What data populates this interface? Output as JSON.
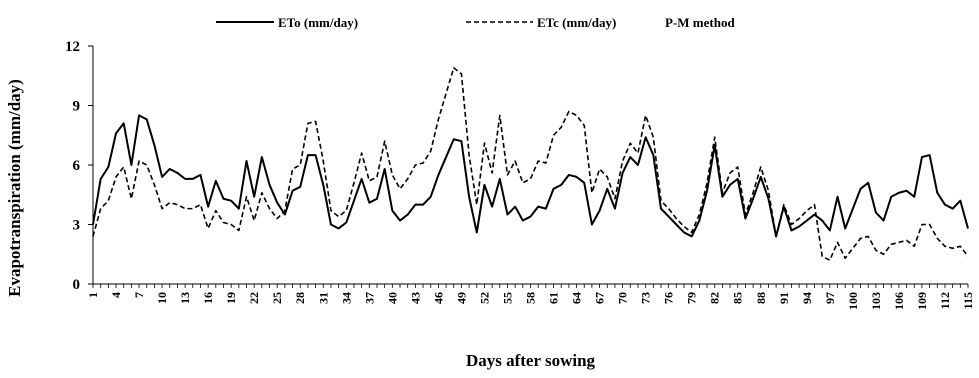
{
  "chart_data": {
    "type": "line",
    "title": "",
    "xlabel": "Days after sowing",
    "ylabel": "Evapotranspiration (mm/day)",
    "x": [
      1,
      2,
      3,
      4,
      5,
      6,
      7,
      8,
      9,
      10,
      11,
      12,
      13,
      14,
      15,
      16,
      17,
      18,
      19,
      20,
      21,
      22,
      23,
      24,
      25,
      26,
      27,
      28,
      29,
      30,
      31,
      32,
      33,
      34,
      35,
      36,
      37,
      38,
      39,
      40,
      41,
      42,
      43,
      44,
      45,
      46,
      47,
      48,
      49,
      50,
      51,
      52,
      53,
      54,
      55,
      56,
      57,
      58,
      59,
      60,
      61,
      62,
      63,
      64,
      65,
      66,
      67,
      68,
      69,
      70,
      71,
      72,
      73,
      74,
      75,
      76,
      77,
      78,
      79,
      80,
      81,
      82,
      83,
      84,
      85,
      86,
      87,
      88,
      89,
      90,
      91,
      92,
      93,
      94,
      95,
      96,
      97,
      98,
      99,
      100,
      101,
      102,
      103,
      104,
      105,
      106,
      107,
      108,
      109,
      110,
      111,
      112,
      113,
      114,
      115
    ],
    "xticks": [
      "1",
      "4",
      "7",
      "10",
      "13",
      "16",
      "19",
      "22",
      "25",
      "28",
      "31",
      "34",
      "37",
      "40",
      "43",
      "46",
      "49",
      "52",
      "55",
      "58",
      "61",
      "64",
      "67",
      "70",
      "73",
      "76",
      "79",
      "82",
      "85",
      "88",
      "91",
      "94",
      "97",
      "100",
      "103",
      "106",
      "109",
      "112",
      "115"
    ],
    "xlim": [
      1,
      115
    ],
    "ylim": [
      0,
      12
    ],
    "yticks": [
      "0",
      "3",
      "6",
      "9",
      "12"
    ],
    "grid": false,
    "legend_position": "top",
    "legend_note": "P-M method",
    "series": [
      {
        "name": "ETo (mm/day)",
        "style": "solid",
        "color": "#000000",
        "values": [
          3.0,
          5.3,
          5.9,
          7.6,
          8.1,
          6.0,
          8.5,
          8.3,
          7.0,
          5.4,
          5.8,
          5.6,
          5.3,
          5.3,
          5.5,
          3.9,
          5.2,
          4.3,
          4.2,
          3.8,
          6.2,
          4.4,
          6.4,
          5.0,
          4.1,
          3.5,
          4.7,
          4.9,
          6.5,
          6.5,
          5.0,
          3.0,
          2.8,
          3.1,
          4.2,
          5.3,
          4.1,
          4.3,
          5.8,
          3.7,
          3.2,
          3.5,
          4.0,
          4.0,
          4.4,
          5.5,
          6.4,
          7.3,
          7.2,
          4.4,
          2.6,
          5.0,
          3.9,
          5.3,
          3.5,
          3.9,
          3.2,
          3.4,
          3.9,
          3.8,
          4.8,
          5.0,
          5.5,
          5.4,
          5.1,
          3.0,
          3.7,
          4.8,
          3.8,
          5.6,
          6.4,
          6.0,
          7.4,
          6.5,
          3.8,
          3.4,
          3.0,
          2.6,
          2.4,
          3.2,
          4.7,
          7.0,
          4.4,
          5.0,
          5.3,
          3.3,
          4.3,
          5.4,
          4.3,
          2.4,
          3.9,
          2.7,
          2.9,
          3.2,
          3.5,
          3.2,
          2.7,
          4.4,
          2.8,
          3.8,
          4.8,
          5.1,
          3.6,
          3.2,
          4.4,
          4.6,
          4.7,
          4.4,
          6.4,
          6.5,
          4.6,
          4.0,
          3.8,
          4.2,
          2.8
        ]
      },
      {
        "name": "ETc (mm/day)",
        "style": "dashed",
        "color": "#000000",
        "values": [
          2.4,
          3.8,
          4.2,
          5.4,
          5.9,
          4.3,
          6.2,
          6.0,
          5.0,
          3.8,
          4.1,
          4.0,
          3.8,
          3.8,
          4.0,
          2.8,
          3.7,
          3.1,
          3.0,
          2.7,
          4.4,
          3.2,
          4.6,
          3.8,
          3.3,
          3.7,
          5.8,
          6.0,
          8.1,
          8.2,
          6.2,
          3.7,
          3.4,
          3.7,
          5.1,
          6.6,
          5.2,
          5.4,
          7.2,
          5.5,
          4.8,
          5.3,
          6.0,
          6.1,
          6.7,
          8.3,
          9.6,
          10.9,
          10.6,
          6.5,
          4.0,
          7.1,
          5.6,
          8.5,
          5.5,
          6.2,
          5.1,
          5.3,
          6.2,
          6.1,
          7.5,
          7.9,
          8.7,
          8.5,
          8.0,
          4.6,
          5.8,
          5.4,
          4.3,
          6.2,
          7.1,
          6.6,
          8.5,
          7.4,
          4.2,
          3.8,
          3.3,
          2.9,
          2.6,
          3.5,
          5.1,
          7.4,
          4.6,
          5.6,
          5.9,
          3.5,
          4.6,
          5.9,
          4.7,
          2.4,
          4.0,
          3.0,
          3.3,
          3.7,
          4.0,
          1.4,
          1.2,
          2.1,
          1.3,
          1.8,
          2.3,
          2.4,
          1.7,
          1.5,
          2.0,
          2.1,
          2.2,
          1.9,
          3.0,
          3.0,
          2.3,
          1.9,
          1.8,
          1.9,
          1.4
        ]
      }
    ]
  }
}
